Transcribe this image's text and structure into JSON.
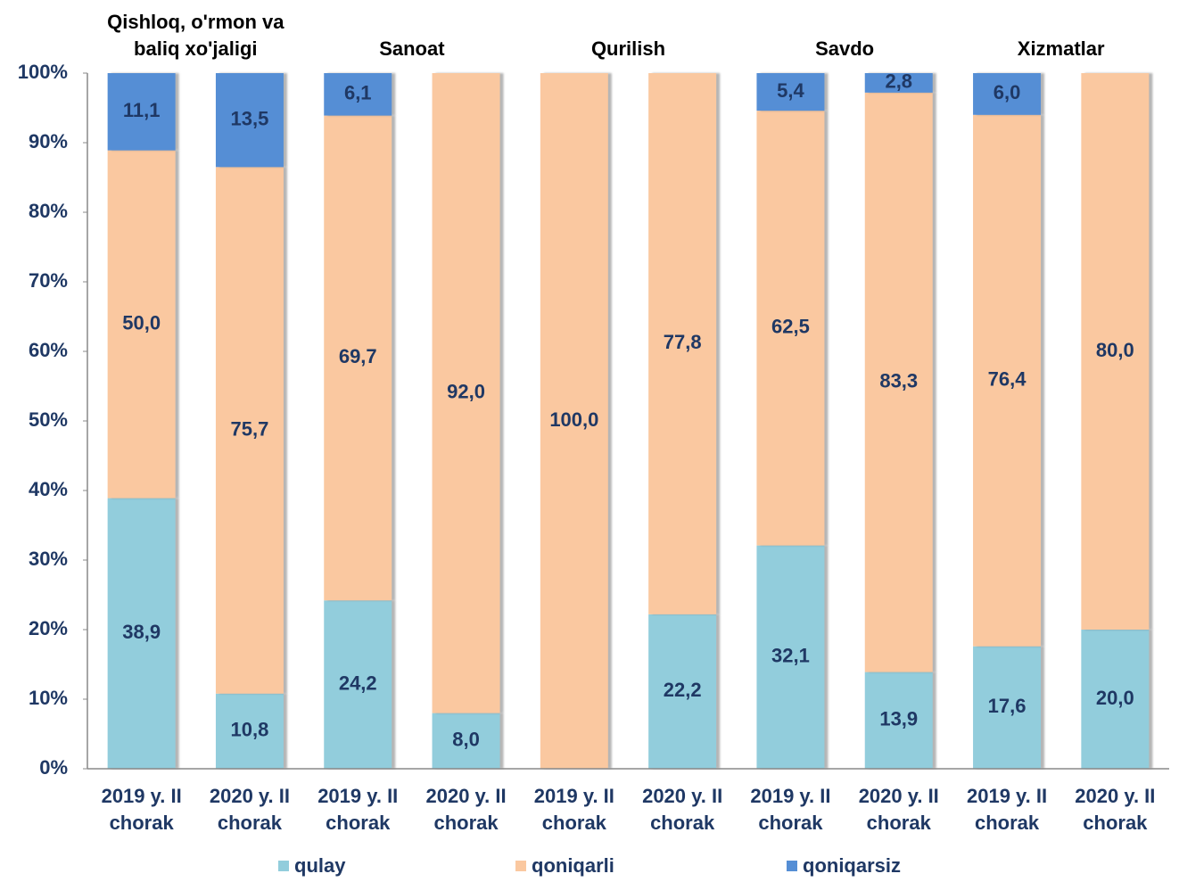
{
  "chart_data": {
    "type": "stacked_bar",
    "groups": [
      "Qishloq, o'rmon va baliq xo'jaligi",
      "Sanoat",
      "Qurilish",
      "Savdo",
      "Xizmatlar"
    ],
    "categories": [
      "2019 y. II chorak",
      "2020 y. II chorak",
      "2019 y. II chorak",
      "2020 y. II chorak",
      "2019 y. II chorak",
      "2020 y. II chorak",
      "2019 y. II chorak",
      "2020 y. II chorak",
      "2019 y. II chorak",
      "2020 y. II chorak"
    ],
    "series": [
      {
        "name": "qulay",
        "color": "#92cddc",
        "values": [
          38.9,
          10.8,
          24.2,
          8.0,
          0,
          22.2,
          32.1,
          13.9,
          17.6,
          20.0
        ],
        "value_labels": [
          "38,9",
          "10,8",
          "24,2",
          "8,0",
          null,
          "22,2",
          "32,1",
          "13,9",
          "17,6",
          "20,0"
        ]
      },
      {
        "name": "qoniqarli",
        "color": "#fac8a0",
        "values": [
          50.0,
          75.7,
          69.7,
          92.0,
          100.0,
          77.8,
          62.5,
          83.3,
          76.4,
          80.0
        ],
        "value_labels": [
          "50,0",
          "75,7",
          "69,7",
          "92,0",
          "100,0",
          "77,8",
          "62,5",
          "83,3",
          "76,4",
          "80,0"
        ]
      },
      {
        "name": "qoniqarsiz",
        "color": "#558ed5",
        "values": [
          11.1,
          13.5,
          6.1,
          0,
          0,
          0,
          5.4,
          2.8,
          6.0,
          0
        ],
        "value_labels": [
          "11,1",
          "13,5",
          "6,1",
          null,
          null,
          null,
          "5,4",
          "2,8",
          "6,0",
          null
        ]
      }
    ],
    "ylim": [
      0,
      100
    ],
    "yticks": [
      {
        "value": 0,
        "label": "0%"
      },
      {
        "value": 10,
        "label": "10%"
      },
      {
        "value": 20,
        "label": "20%"
      },
      {
        "value": 30,
        "label": "30%"
      },
      {
        "value": 40,
        "label": "40%"
      },
      {
        "value": 50,
        "label": "50%"
      },
      {
        "value": 60,
        "label": "60%"
      },
      {
        "value": 70,
        "label": "70%"
      },
      {
        "value": 80,
        "label": "80%"
      },
      {
        "value": 90,
        "label": "90%"
      },
      {
        "value": 100,
        "label": "100%"
      }
    ],
    "legend": "bottom"
  }
}
